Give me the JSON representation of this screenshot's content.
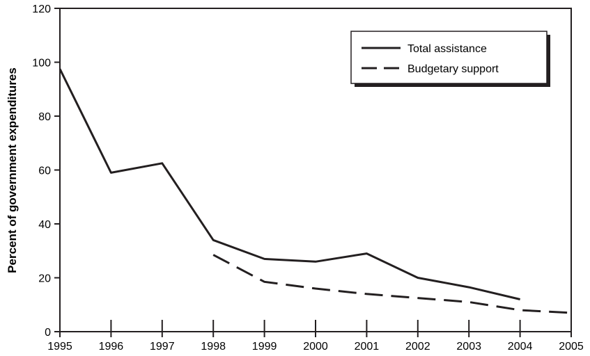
{
  "chart_data": {
    "type": "line",
    "title": "",
    "xlabel": "",
    "ylabel": "Percent of government expenditures",
    "x": [
      "1995",
      "1996",
      "1997",
      "1998",
      "1999",
      "2000",
      "2001",
      "2002",
      "2003",
      "2004",
      "2005"
    ],
    "ylim": [
      0,
      120
    ],
    "yticks": [
      0,
      20,
      40,
      60,
      80,
      100,
      120
    ],
    "grid": false,
    "legend_position": "top-right",
    "series": [
      {
        "name": "Total assistance",
        "style": "solid",
        "color": "#231f20",
        "points": [
          {
            "x": "1995",
            "y": 97.5
          },
          {
            "x": "1996",
            "y": 59
          },
          {
            "x": "1997",
            "y": 62.5
          },
          {
            "x": "1998",
            "y": 34
          },
          {
            "x": "1999",
            "y": 27
          },
          {
            "x": "2000",
            "y": 26
          },
          {
            "x": "2001",
            "y": 29
          },
          {
            "x": "2002",
            "y": 20
          },
          {
            "x": "2003",
            "y": 16.5
          },
          {
            "x": "2004",
            "y": 12
          }
        ]
      },
      {
        "name": "Budgetary support",
        "style": "dashed",
        "color": "#231f20",
        "points": [
          {
            "x": "1998",
            "y": 28.5
          },
          {
            "x": "1999",
            "y": 18.5
          },
          {
            "x": "2000",
            "y": 16
          },
          {
            "x": "2001",
            "y": 14
          },
          {
            "x": "2002",
            "y": 12.5
          },
          {
            "x": "2003",
            "y": 11
          },
          {
            "x": "2004",
            "y": 8
          },
          {
            "x": "2005",
            "y": 7
          }
        ]
      }
    ]
  }
}
